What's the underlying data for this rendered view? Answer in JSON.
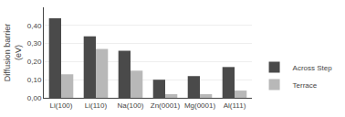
{
  "chart_data": {
    "type": "bar",
    "categories": [
      "Li(100)",
      "Li(110)",
      "Na(100)",
      "Zn(0001)",
      "Mg(0001)",
      "Al(111)"
    ],
    "series": [
      {
        "name": "Across Step",
        "color": "#4a4a4a",
        "values": [
          0.44,
          0.34,
          0.26,
          0.1,
          0.12,
          0.17
        ]
      },
      {
        "name": "Terrace",
        "color": "#b8b8b8",
        "values": [
          0.13,
          0.27,
          0.15,
          0.02,
          0.02,
          0.04
        ]
      }
    ],
    "ylabel": "Diffusion barrier\n(eV)",
    "ylim": [
      0,
      0.5
    ],
    "yticks": [
      {
        "value": 0,
        "label": "0,00"
      },
      {
        "value": 0.1,
        "label": "0,10"
      },
      {
        "value": 0.2,
        "label": "0,20"
      },
      {
        "value": 0.3,
        "label": "0,30"
      },
      {
        "value": 0.4,
        "label": "0,40"
      }
    ],
    "grid": true,
    "legend": "lower right"
  }
}
